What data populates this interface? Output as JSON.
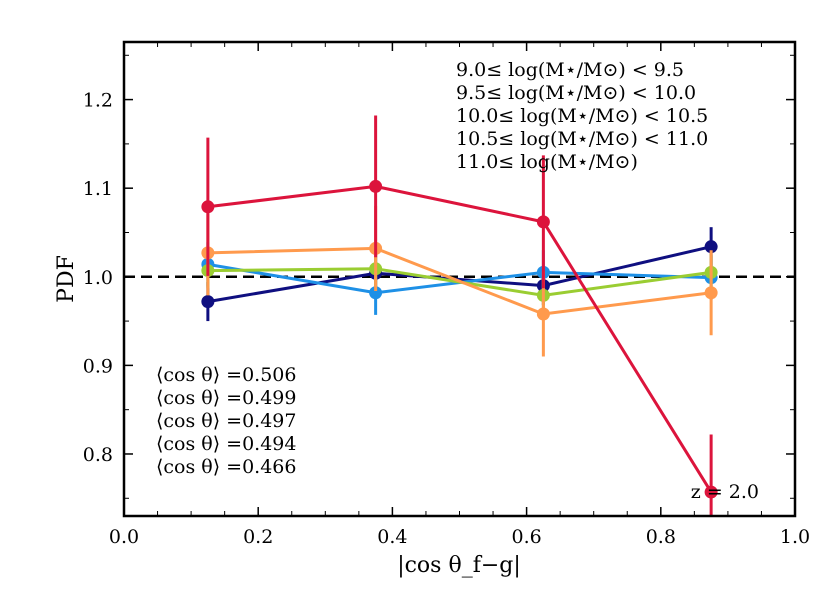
{
  "chart_data": {
    "type": "line",
    "title": "",
    "xlabel": "|cos θ_f−g|",
    "ylabel": "PDF",
    "xlim": [
      0.0,
      1.0
    ],
    "ylim": [
      0.73,
      1.265
    ],
    "xticks": [
      0.0,
      0.2,
      0.4,
      0.6,
      0.8,
      1.0
    ],
    "xtick_labels": [
      "0.0",
      "0.2",
      "0.4",
      "0.6",
      "0.8",
      "1.0"
    ],
    "yticks": [
      0.8,
      0.9,
      1.0,
      1.1,
      1.2
    ],
    "ytick_labels": [
      "0.8",
      "0.9",
      "1.0",
      "1.1",
      "1.2"
    ],
    "reference_line": {
      "y": 1.0,
      "style": "dashed",
      "color": "#000000"
    },
    "x": [
      0.125,
      0.375,
      0.625,
      0.875
    ],
    "series": [
      {
        "name": "9.0≤ log(M⋆/M⊙) < 9.5",
        "color": "#0f0f80",
        "values": [
          0.972,
          1.004,
          0.99,
          1.034
        ],
        "errors": [
          0.022,
          0.022,
          0.022,
          0.022
        ],
        "mean_label": "⟨cos θ⟩ =0.506"
      },
      {
        "name": "9.5≤ log(M⋆/M⊙) < 10.0",
        "color": "#1e90e6",
        "values": [
          1.014,
          0.982,
          1.005,
          0.999
        ],
        "errors": [
          0.025,
          0.025,
          0.025,
          0.025
        ],
        "mean_label": "⟨cos θ⟩ =0.499"
      },
      {
        "name": "10.0≤ log(M⋆/M⊙) < 10.5",
        "color": "#9acd32",
        "values": [
          1.007,
          1.009,
          0.979,
          1.005
        ],
        "errors": [
          0.02,
          0.02,
          0.02,
          0.02
        ],
        "mean_label": "⟨cos θ⟩ =0.497"
      },
      {
        "name": "10.5≤ log(M⋆/M⊙) < 11.0",
        "color": "#ff9a4d",
        "values": [
          1.027,
          1.032,
          0.958,
          0.982
        ],
        "errors": [
          0.048,
          0.048,
          0.048,
          0.048
        ],
        "mean_label": "⟨cos θ⟩ =0.494"
      },
      {
        "name": "11.0≤ log(M⋆/M⊙)",
        "color": "#dc143c",
        "values": [
          1.079,
          1.102,
          1.062,
          0.757
        ],
        "errors": [
          0.078,
          0.08,
          0.075,
          0.065
        ],
        "mean_label": "⟨cos θ⟩ =0.466"
      }
    ],
    "annotation": "z = 2.0",
    "legend_position": "top-right"
  }
}
